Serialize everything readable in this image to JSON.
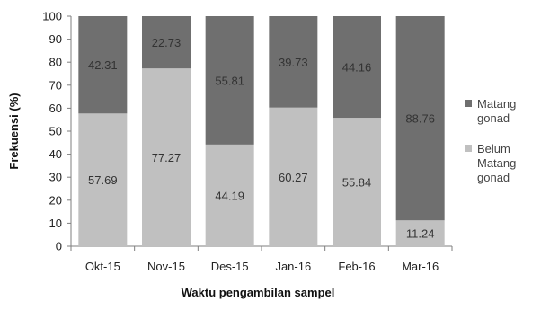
{
  "chart_data": {
    "type": "bar",
    "stacked": true,
    "percent_stacked": true,
    "categories": [
      "Okt-15",
      "Nov-15",
      "Des-15",
      "Jan-16",
      "Feb-16",
      "Mar-16"
    ],
    "series": [
      {
        "name": "Belum Matang gonad",
        "values": [
          57.69,
          77.27,
          44.19,
          60.27,
          55.84,
          11.24
        ],
        "color": "#c0c0c0"
      },
      {
        "name": "Matang gonad",
        "values": [
          42.31,
          22.73,
          55.81,
          39.73,
          44.16,
          88.76
        ],
        "color": "#6f6f6f"
      }
    ],
    "data_labels": {
      "Belum Matang gonad": [
        "57.69",
        "77.27",
        "44.19",
        "60.27",
        "55.84",
        "11.24"
      ],
      "Matang gonad": [
        "42.31",
        "22.73",
        "55.81",
        "39.73",
        "44.16",
        "88.76"
      ]
    },
    "xlabel": "Waktu pengambilan sampel",
    "ylabel": "Frekuensi (%)",
    "ylim": [
      0,
      100
    ],
    "yticks": [
      "0",
      "10",
      "20",
      "30",
      "40",
      "50",
      "60",
      "70",
      "80",
      "90",
      "100"
    ],
    "grid": false,
    "legend": {
      "position": "right",
      "entries": [
        {
          "lines": [
            "Matang",
            "gonad"
          ],
          "color": "#6f6f6f"
        },
        {
          "lines": [
            "Belum",
            "Matang",
            "gonad"
          ],
          "color": "#c0c0c0"
        }
      ]
    }
  }
}
